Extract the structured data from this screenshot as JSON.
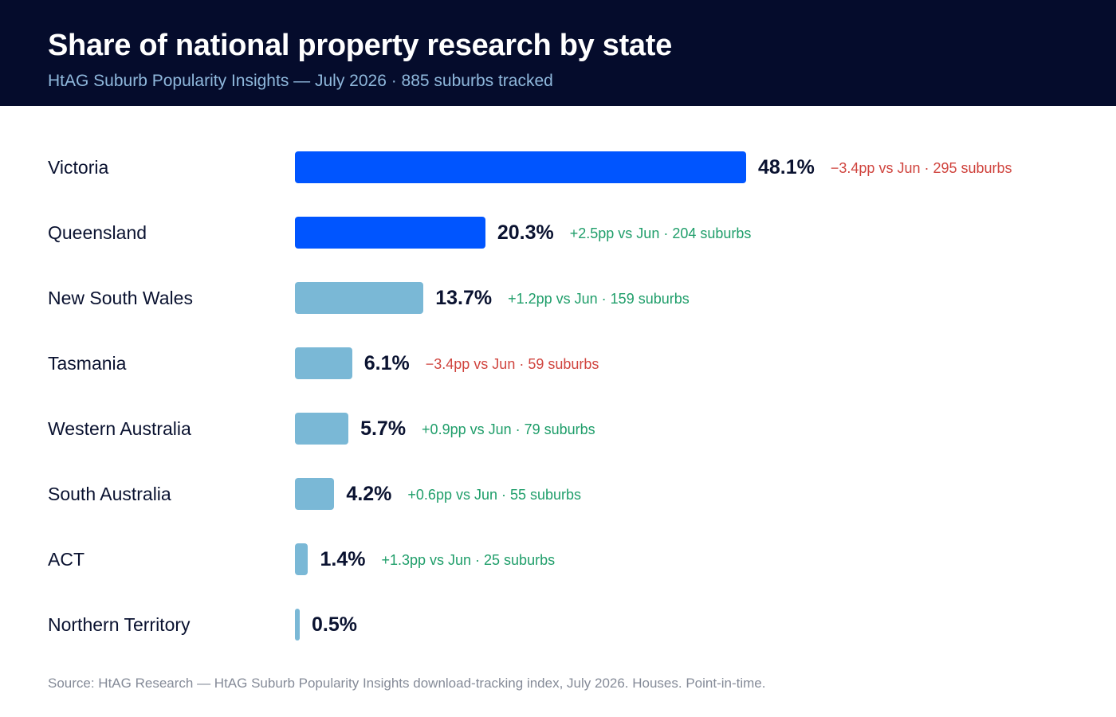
{
  "header": {
    "title": "Share of national property research by state",
    "subtitle": "HtAG Suburb Popularity Insights — July 2026 · 885 suburbs tracked"
  },
  "colors": {
    "header_bg": "#050c2c",
    "highlight_bar": "#0055ff",
    "standard_bar": "#7ab8d6",
    "negative": "#d0453f",
    "positive": "#1f9e6a"
  },
  "chart_data": {
    "type": "bar",
    "orientation": "horizontal",
    "title": "Share of national property research by state",
    "subtitle": "HtAG Suburb Popularity Insights — July 2026 · 885 suburbs tracked",
    "unit": "%",
    "categories": [
      "Victoria",
      "Queensland",
      "New South Wales",
      "Tasmania",
      "Western Australia",
      "South Australia",
      "ACT",
      "Northern Territory"
    ],
    "values": [
      48.1,
      20.3,
      13.7,
      6.1,
      5.7,
      4.2,
      1.4,
      0.5
    ],
    "value_labels": [
      "48.1%",
      "20.3%",
      "13.7%",
      "6.1%",
      "5.7%",
      "4.2%",
      "1.4%",
      "0.5%"
    ],
    "highlighted": [
      true,
      true,
      false,
      false,
      false,
      false,
      false,
      false
    ],
    "annotations": [
      "−3.4pp vs Jun · 295 suburbs",
      "+2.5pp vs Jun · 204 suburbs",
      "+1.2pp vs Jun · 159 suburbs",
      "−3.4pp vs Jun · 59 suburbs",
      "+0.9pp vs Jun · 79 suburbs",
      "+0.6pp vs Jun · 55 suburbs",
      "+1.3pp vs Jun · 25 suburbs",
      ""
    ],
    "change_direction": [
      "negative",
      "positive",
      "positive",
      "negative",
      "positive",
      "positive",
      "positive",
      "none"
    ],
    "xlim": [
      0,
      48.1
    ],
    "grid": false,
    "legend": "none"
  },
  "footer": {
    "source": "Source: HtAG Research — HtAG Suburb Popularity Insights download-tracking index, July 2026. Houses. Point-in-time."
  }
}
